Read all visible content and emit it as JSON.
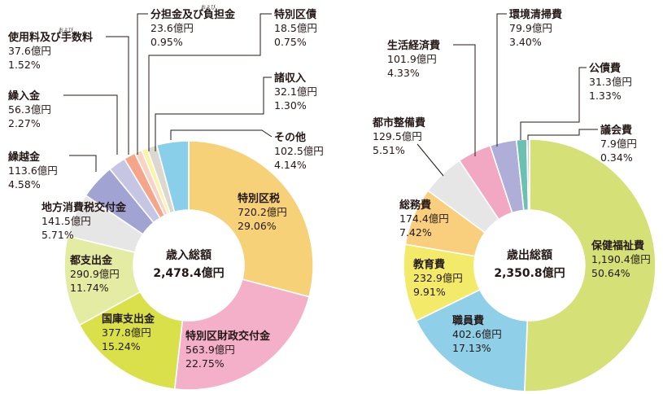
{
  "chart_data": [
    {
      "type": "pie",
      "center_label": [
        "歳入総額",
        "2,478.4億円"
      ],
      "slices": [
        {
          "name": "特別区税",
          "amount": "720.2億円",
          "percent": 29.06,
          "percent_text": "29.06%",
          "color": "#F7D177"
        },
        {
          "name": "特別区財政交付金",
          "amount": "563.9億円",
          "percent": 22.75,
          "percent_text": "22.75%",
          "color": "#F4AFC9"
        },
        {
          "name": "国庫支出金",
          "amount": "377.8億円",
          "percent": 15.24,
          "percent_text": "15.24%",
          "color": "#D9E04A"
        },
        {
          "name": "都支出金",
          "amount": "290.9億円",
          "percent": 11.74,
          "percent_text": "11.74%",
          "color": "#E4EBA3"
        },
        {
          "name": "地方消費税交付金",
          "amount": "141.5億円",
          "percent": 5.71,
          "percent_text": "5.71%",
          "color": "#E6E6E6"
        },
        {
          "name": "繰越金",
          "amount": "113.6億円",
          "percent": 4.58,
          "percent_text": "4.58%",
          "color": "#A1A3D3"
        },
        {
          "name": "繰入金",
          "amount": "56.3億円",
          "percent": 2.27,
          "percent_text": "2.27%",
          "color": "#C6C5E3"
        },
        {
          "name": "使用料及び手数料",
          "ruby": "および",
          "amount": "37.6億円",
          "percent": 1.52,
          "percent_text": "1.52%",
          "color": "#F4A58A"
        },
        {
          "name": "分担金及び負担金",
          "ruby": "および",
          "amount": "23.6億円",
          "percent": 0.95,
          "percent_text": "0.95%",
          "color": "#FAD2C6"
        },
        {
          "name": "特別区債",
          "amount": "18.5億円",
          "percent": 0.75,
          "percent_text": "0.75%",
          "color": "#FBF3A6"
        },
        {
          "name": "諸収入",
          "amount": "32.1億円",
          "percent": 1.3,
          "percent_text": "1.30%",
          "color": "#DDD8CF"
        },
        {
          "name": "その他",
          "amount": "102.5億円",
          "percent": 4.14,
          "percent_text": "4.14%",
          "color": "#8ACFEA"
        }
      ]
    },
    {
      "type": "pie",
      "center_label": [
        "歳出総額",
        "2,350.8億円"
      ],
      "slices": [
        {
          "name": "保健福祉費",
          "amount": "1,190.4億円",
          "percent": 50.64,
          "percent_text": "50.64%",
          "color": "#D5E076"
        },
        {
          "name": "職員費",
          "amount": "402.6億円",
          "percent": 17.13,
          "percent_text": "17.13%",
          "color": "#8FD0E8"
        },
        {
          "name": "教育費",
          "amount": "232.9億円",
          "percent": 9.91,
          "percent_text": "9.91%",
          "color": "#F3EA6A"
        },
        {
          "name": "総務費",
          "amount": "174.4億円",
          "percent": 7.42,
          "percent_text": "7.42%",
          "color": "#F9CF7E"
        },
        {
          "name": "都市整備費",
          "amount": "129.5億円",
          "percent": 5.51,
          "percent_text": "5.51%",
          "color": "#E6E6E6"
        },
        {
          "name": "生活経済費",
          "amount": "101.9億円",
          "percent": 4.33,
          "percent_text": "4.33%",
          "color": "#F2A7C2"
        },
        {
          "name": "環境清掃費",
          "amount": "79.9億円",
          "percent": 3.4,
          "percent_text": "3.40%",
          "color": "#AEAED8"
        },
        {
          "name": "公債費",
          "amount": "31.3億円",
          "percent": 1.33,
          "percent_text": "1.33%",
          "color": "#6CC0B2"
        },
        {
          "name": "議会費",
          "amount": "7.9億円",
          "percent": 0.34,
          "percent_text": "0.34%",
          "color": "#C9C7E6"
        }
      ]
    }
  ]
}
